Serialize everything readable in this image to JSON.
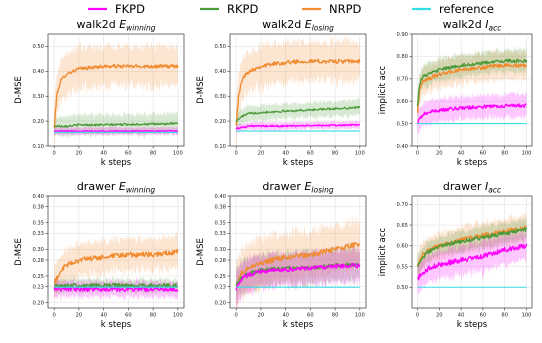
{
  "legend": {
    "entries": [
      {
        "label": "FKPD",
        "color": "#ff00ff"
      },
      {
        "label": "RKPD",
        "color": "#4c9a3a"
      },
      {
        "label": "NRPD",
        "color": "#f08a2e"
      },
      {
        "label": "reference",
        "color": "#33dde6"
      }
    ]
  },
  "chart_data": [
    {
      "type": "line",
      "title_prefix": "walk2d",
      "title_sym": "E",
      "title_sub": "winning",
      "xlabel": "k steps",
      "ylabel": "D-MSE",
      "xlim": [
        -5,
        105
      ],
      "ylim": [
        0.1,
        0.55
      ],
      "xticks": [
        0,
        20,
        40,
        60,
        80,
        100
      ],
      "yticks": [
        0.1,
        0.2,
        0.3,
        0.4,
        0.5
      ],
      "ytick_labels": [
        "0.10",
        "0.20",
        "0.30",
        "0.40",
        "0.50"
      ],
      "grid": true,
      "series": [
        {
          "name": "NRPD",
          "color": "#f08a2e",
          "x": [
            0,
            2,
            5,
            10,
            15,
            20,
            30,
            40,
            50,
            60,
            70,
            80,
            90,
            100
          ],
          "y": [
            0.17,
            0.3,
            0.36,
            0.39,
            0.4,
            0.41,
            0.415,
            0.42,
            0.42,
            0.42,
            0.42,
            0.42,
            0.42,
            0.42
          ],
          "band": 0.08,
          "noise": 0.007
        },
        {
          "name": "RKPD",
          "color": "#4c9a3a",
          "x": [
            0,
            10,
            20,
            40,
            60,
            80,
            100
          ],
          "y": [
            0.18,
            0.18,
            0.185,
            0.185,
            0.187,
            0.188,
            0.19
          ],
          "band": 0.04,
          "noise": 0.004
        },
        {
          "name": "FKPD",
          "color": "#ff00ff",
          "x": [
            0,
            10,
            20,
            40,
            60,
            80,
            100
          ],
          "y": [
            0.16,
            0.16,
            0.16,
            0.16,
            0.16,
            0.16,
            0.16
          ],
          "band": 0.015,
          "noise": 0.002
        },
        {
          "name": "reference",
          "color": "#33dde6",
          "x": [
            0,
            100
          ],
          "y": [
            0.155,
            0.155
          ],
          "band": 0.0,
          "noise": 0
        }
      ]
    },
    {
      "type": "line",
      "title_prefix": "walk2d",
      "title_sym": "E",
      "title_sub": "losing",
      "xlabel": "k steps",
      "ylabel": "D-MSE",
      "xlim": [
        -5,
        105
      ],
      "ylim": [
        0.1,
        0.55
      ],
      "xticks": [
        0,
        20,
        40,
        60,
        80,
        100
      ],
      "yticks": [
        0.1,
        0.2,
        0.3,
        0.4,
        0.5
      ],
      "ytick_labels": [
        "0.10",
        "0.20",
        "0.30",
        "0.40",
        "0.50"
      ],
      "grid": true,
      "series": [
        {
          "name": "NRPD",
          "color": "#f08a2e",
          "x": [
            0,
            2,
            5,
            10,
            15,
            20,
            30,
            40,
            50,
            60,
            70,
            80,
            90,
            100
          ],
          "y": [
            0.19,
            0.3,
            0.37,
            0.4,
            0.41,
            0.42,
            0.43,
            0.435,
            0.44,
            0.44,
            0.44,
            0.44,
            0.44,
            0.44
          ],
          "band": 0.08,
          "noise": 0.008
        },
        {
          "name": "RKPD",
          "color": "#4c9a3a",
          "x": [
            0,
            5,
            10,
            20,
            40,
            60,
            80,
            100
          ],
          "y": [
            0.2,
            0.22,
            0.23,
            0.235,
            0.24,
            0.245,
            0.25,
            0.255
          ],
          "band": 0.03,
          "noise": 0.004
        },
        {
          "name": "FKPD",
          "color": "#ff00ff",
          "x": [
            0,
            5,
            10,
            20,
            40,
            60,
            80,
            100
          ],
          "y": [
            0.17,
            0.175,
            0.18,
            0.18,
            0.18,
            0.182,
            0.183,
            0.185
          ],
          "band": 0.015,
          "noise": 0.003
        },
        {
          "name": "reference",
          "color": "#33dde6",
          "x": [
            0,
            100
          ],
          "y": [
            0.16,
            0.16
          ],
          "band": 0.0,
          "noise": 0
        }
      ]
    },
    {
      "type": "line",
      "title_prefix": "walk2d",
      "title_sym": "I",
      "title_sub": "acc",
      "xlabel": "k steps",
      "ylabel": "implicit acc",
      "xlim": [
        -5,
        105
      ],
      "ylim": [
        0.4,
        0.9
      ],
      "xticks": [
        0,
        20,
        40,
        60,
        80,
        100
      ],
      "yticks": [
        0.4,
        0.5,
        0.6,
        0.7,
        0.8,
        0.9
      ],
      "ytick_labels": [
        "0.40",
        "0.50",
        "0.60",
        "0.70",
        "0.80",
        "0.90"
      ],
      "grid": true,
      "series": [
        {
          "name": "NRPD",
          "color": "#f08a2e",
          "x": [
            0,
            2,
            5,
            10,
            20,
            40,
            60,
            80,
            100
          ],
          "y": [
            0.55,
            0.65,
            0.69,
            0.7,
            0.72,
            0.74,
            0.75,
            0.76,
            0.76
          ],
          "band": 0.06,
          "noise": 0.008
        },
        {
          "name": "RKPD",
          "color": "#4c9a3a",
          "x": [
            0,
            2,
            5,
            10,
            20,
            40,
            60,
            80,
            100
          ],
          "y": [
            0.58,
            0.68,
            0.71,
            0.72,
            0.74,
            0.76,
            0.77,
            0.78,
            0.78
          ],
          "band": 0.05,
          "noise": 0.007
        },
        {
          "name": "FKPD",
          "color": "#ff00ff",
          "x": [
            0,
            2,
            5,
            10,
            20,
            40,
            60,
            80,
            100
          ],
          "y": [
            0.5,
            0.52,
            0.54,
            0.55,
            0.56,
            0.57,
            0.575,
            0.58,
            0.58
          ],
          "band": 0.05,
          "noise": 0.008
        },
        {
          "name": "reference",
          "color": "#33dde6",
          "x": [
            0,
            100
          ],
          "y": [
            0.5,
            0.5
          ],
          "band": 0.0,
          "noise": 0
        }
      ]
    },
    {
      "type": "line",
      "title_prefix": "drawer",
      "title_sym": "E",
      "title_sub": "winning",
      "xlabel": "k steps",
      "ylabel": "D-MSE",
      "xlim": [
        -5,
        105
      ],
      "ylim": [
        0.19,
        0.4
      ],
      "xticks": [
        0,
        20,
        40,
        60,
        80,
        100
      ],
      "yticks": [
        0.2,
        0.23,
        0.25,
        0.28,
        0.3,
        0.33,
        0.35,
        0.38,
        0.4
      ],
      "ytick_labels": [
        "0.20",
        "0.23",
        "0.25",
        "0.28",
        "0.30",
        "0.33",
        "0.35",
        "0.38",
        "0.40"
      ],
      "grid": true,
      "series": [
        {
          "name": "NRPD",
          "color": "#f08a2e",
          "x": [
            0,
            3,
            6,
            10,
            20,
            40,
            60,
            80,
            100
          ],
          "y": [
            0.235,
            0.25,
            0.262,
            0.27,
            0.28,
            0.285,
            0.29,
            0.29,
            0.295
          ],
          "band": 0.03,
          "noise": 0.005
        },
        {
          "name": "RKPD",
          "color": "#4c9a3a",
          "x": [
            0,
            20,
            40,
            60,
            80,
            100
          ],
          "y": [
            0.232,
            0.232,
            0.232,
            0.232,
            0.232,
            0.232
          ],
          "band": 0.012,
          "noise": 0.004
        },
        {
          "name": "FKPD",
          "color": "#ff00ff",
          "x": [
            0,
            20,
            40,
            60,
            80,
            100
          ],
          "y": [
            0.226,
            0.225,
            0.225,
            0.225,
            0.225,
            0.225
          ],
          "band": 0.015,
          "noise": 0.004
        },
        {
          "name": "reference",
          "color": "#33dde6",
          "x": [
            0,
            100
          ],
          "y": [
            0.229,
            0.229
          ],
          "band": 0.0,
          "noise": 0
        }
      ]
    },
    {
      "type": "line",
      "title_prefix": "drawer",
      "title_sym": "E",
      "title_sub": "losing",
      "xlabel": "k steps",
      "ylabel": "D-MSE",
      "xlim": [
        -5,
        105
      ],
      "ylim": [
        0.19,
        0.4
      ],
      "xticks": [
        0,
        20,
        40,
        60,
        80,
        100
      ],
      "yticks": [
        0.2,
        0.23,
        0.25,
        0.28,
        0.3,
        0.33,
        0.35,
        0.38,
        0.4
      ],
      "ytick_labels": [
        "0.20",
        "0.23",
        "0.25",
        "0.28",
        "0.30",
        "0.33",
        "0.35",
        "0.38",
        "0.40"
      ],
      "grid": true,
      "series": [
        {
          "name": "NRPD",
          "color": "#f08a2e",
          "x": [
            0,
            3,
            6,
            10,
            20,
            40,
            60,
            80,
            100
          ],
          "y": [
            0.23,
            0.25,
            0.26,
            0.265,
            0.275,
            0.285,
            0.29,
            0.3,
            0.31
          ],
          "band": 0.045,
          "noise": 0.005
        },
        {
          "name": "RKPD",
          "color": "#4c9a3a",
          "x": [
            0,
            3,
            6,
            10,
            20,
            40,
            60,
            80,
            100
          ],
          "y": [
            0.235,
            0.245,
            0.25,
            0.255,
            0.26,
            0.265,
            0.265,
            0.27,
            0.27
          ],
          "band": 0.03,
          "noise": 0.004
        },
        {
          "name": "FKPD",
          "color": "#ff00ff",
          "x": [
            0,
            3,
            6,
            10,
            20,
            40,
            60,
            80,
            100
          ],
          "y": [
            0.225,
            0.24,
            0.248,
            0.252,
            0.258,
            0.262,
            0.265,
            0.268,
            0.27
          ],
          "band": 0.03,
          "noise": 0.004
        },
        {
          "name": "reference",
          "color": "#33dde6",
          "x": [
            0,
            100
          ],
          "y": [
            0.229,
            0.229
          ],
          "band": 0.0,
          "noise": 0
        }
      ]
    },
    {
      "type": "line",
      "title_prefix": "drawer",
      "title_sym": "I",
      "title_sub": "acc",
      "xlabel": "k steps",
      "ylabel": "implicit acc",
      "xlim": [
        -5,
        105
      ],
      "ylim": [
        0.45,
        0.72
      ],
      "xticks": [
        0,
        20,
        40,
        60,
        80,
        100
      ],
      "yticks": [
        0.5,
        0.55,
        0.6,
        0.65,
        0.7
      ],
      "ytick_labels": [
        "0.50",
        "0.55",
        "0.60",
        "0.65",
        "0.70"
      ],
      "grid": true,
      "series": [
        {
          "name": "NRPD",
          "color": "#f08a2e",
          "x": [
            0,
            3,
            6,
            10,
            20,
            40,
            60,
            80,
            100
          ],
          "y": [
            0.55,
            0.57,
            0.58,
            0.59,
            0.6,
            0.615,
            0.625,
            0.635,
            0.645
          ],
          "band": 0.03,
          "noise": 0.005
        },
        {
          "name": "RKPD",
          "color": "#4c9a3a",
          "x": [
            0,
            3,
            6,
            10,
            20,
            40,
            60,
            80,
            100
          ],
          "y": [
            0.55,
            0.565,
            0.575,
            0.585,
            0.6,
            0.61,
            0.62,
            0.63,
            0.64
          ],
          "band": 0.025,
          "noise": 0.005
        },
        {
          "name": "FKPD",
          "color": "#ff00ff",
          "x": [
            0,
            3,
            6,
            10,
            20,
            40,
            60,
            80,
            100
          ],
          "y": [
            0.52,
            0.53,
            0.535,
            0.545,
            0.555,
            0.565,
            0.575,
            0.59,
            0.6
          ],
          "band": 0.035,
          "noise": 0.006
        },
        {
          "name": "reference",
          "color": "#33dde6",
          "x": [
            0,
            100
          ],
          "y": [
            0.5,
            0.5
          ],
          "band": 0.0,
          "noise": 0
        }
      ]
    }
  ]
}
